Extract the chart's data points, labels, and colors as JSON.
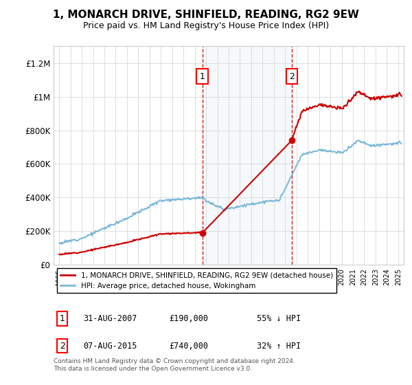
{
  "title": "1, MONARCH DRIVE, SHINFIELD, READING, RG2 9EW",
  "subtitle": "Price paid vs. HM Land Registry's House Price Index (HPI)",
  "ylabel_ticks": [
    "£0",
    "£200K",
    "£400K",
    "£600K",
    "£800K",
    "£1M",
    "£1.2M"
  ],
  "ytick_values": [
    0,
    200000,
    400000,
    600000,
    800000,
    1000000,
    1200000
  ],
  "ylim": [
    0,
    1300000
  ],
  "xlim_start": 1994.5,
  "xlim_end": 2025.5,
  "sale1_x": 2007.667,
  "sale1_y": 190000,
  "sale1_label": "31-AUG-2007",
  "sale1_price": "£190,000",
  "sale1_hpi": "55% ↓ HPI",
  "sale2_x": 2015.583,
  "sale2_y": 740000,
  "sale2_label": "07-AUG-2015",
  "sale2_price": "£740,000",
  "sale2_hpi": "32% ↑ HPI",
  "hpi_color": "#7ab8d9",
  "sale_color": "#cc0000",
  "vline_color": "#cc0000",
  "shade_color": "#daeaf5",
  "footnote": "Contains HM Land Registry data © Crown copyright and database right 2024.\nThis data is licensed under the Open Government Licence v3.0.",
  "legend1": "1, MONARCH DRIVE, SHINFIELD, READING, RG2 9EW (detached house)",
  "legend2": "HPI: Average price, detached house, Wokingham",
  "xtick_years": [
    1995,
    1996,
    1997,
    1998,
    1999,
    2000,
    2001,
    2002,
    2003,
    2004,
    2005,
    2006,
    2007,
    2008,
    2009,
    2010,
    2011,
    2012,
    2013,
    2014,
    2015,
    2016,
    2017,
    2018,
    2019,
    2020,
    2021,
    2022,
    2023,
    2024,
    2025
  ]
}
